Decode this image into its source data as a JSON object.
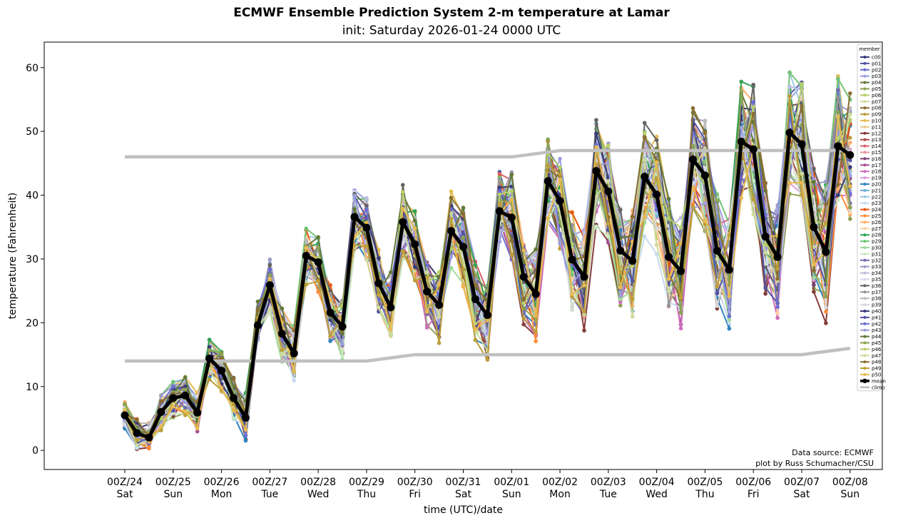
{
  "chart_data": {
    "type": "line",
    "title": "ECMWF Ensemble Prediction System 2-m temperature at Lamar",
    "subtitle": "init: Saturday 2026-01-24 0000 UTC",
    "xlabel": "time (UTC)/date",
    "ylabel": "temperature (Fahrenheit)",
    "ylim": [
      -3,
      64
    ],
    "xlim_hours": [
      -40,
      376
    ],
    "time_step_hours": 6,
    "yticks": [
      0,
      10,
      20,
      30,
      40,
      50,
      60
    ],
    "xticks": [
      {
        "hour": 0,
        "line1": "00Z/24",
        "line2": "Sat"
      },
      {
        "hour": 24,
        "line1": "00Z/25",
        "line2": "Sun"
      },
      {
        "hour": 48,
        "line1": "00Z/26",
        "line2": "Mon"
      },
      {
        "hour": 72,
        "line1": "00Z/27",
        "line2": "Tue"
      },
      {
        "hour": 96,
        "line1": "00Z/28",
        "line2": "Wed"
      },
      {
        "hour": 120,
        "line1": "00Z/29",
        "line2": "Thu"
      },
      {
        "hour": 144,
        "line1": "00Z/30",
        "line2": "Fri"
      },
      {
        "hour": 168,
        "line1": "00Z/31",
        "line2": "Sat"
      },
      {
        "hour": 192,
        "line1": "00Z/01",
        "line2": "Sun"
      },
      {
        "hour": 216,
        "line1": "00Z/02",
        "line2": "Mon"
      },
      {
        "hour": 240,
        "line1": "00Z/03",
        "line2": "Tue"
      },
      {
        "hour": 264,
        "line1": "00Z/04",
        "line2": "Wed"
      },
      {
        "hour": 288,
        "line1": "00Z/05",
        "line2": "Thu"
      },
      {
        "hour": 312,
        "line1": "00Z/06",
        "line2": "Fri"
      },
      {
        "hour": 336,
        "line1": "00Z/07",
        "line2": "Sat"
      },
      {
        "hour": 360,
        "line1": "00Z/08",
        "line2": "Sun"
      }
    ],
    "grid": false,
    "legend": {
      "title": "member",
      "placement": "right",
      "entries": [
        "c00",
        "p01",
        "p02",
        "p03",
        "p04",
        "p05",
        "p06",
        "p07",
        "p08",
        "p09",
        "p10",
        "p11",
        "p12",
        "p13",
        "p14",
        "p15",
        "p16",
        "p17",
        "p18",
        "p19",
        "p20",
        "p21",
        "p22",
        "p23",
        "p24",
        "p25",
        "p26",
        "p27",
        "p28",
        "p29",
        "p30",
        "p31",
        "p32",
        "p33",
        "p34",
        "p35",
        "p36",
        "p37",
        "p38",
        "p39",
        "p40",
        "p41",
        "p42",
        "p43",
        "p44",
        "p45",
        "p46",
        "p47",
        "p48",
        "p49",
        "p50",
        "mean",
        "climo"
      ]
    },
    "member_colors": [
      "#393b79",
      "#5254a3",
      "#6b6ecf",
      "#9c9ede",
      "#637939",
      "#8ca252",
      "#b5cf6b",
      "#cedb9c",
      "#8c6d31",
      "#bd9e39",
      "#e7ba52",
      "#e7cb94",
      "#843c39",
      "#ad494a",
      "#d6616b",
      "#e7969c",
      "#7b4173",
      "#a55194",
      "#ce6dbd",
      "#de9ed6",
      "#3182bd",
      "#6baed6",
      "#9ecae1",
      "#c6dbef",
      "#e6550d",
      "#fd8d3c",
      "#fdae6b",
      "#fdd0a2",
      "#31a354",
      "#74c476",
      "#a1d99b",
      "#c7e9c0",
      "#756bb1",
      "#9e9ac8",
      "#bcbddc",
      "#dadaeb",
      "#636363",
      "#969696",
      "#bdbdbd",
      "#d9d9d9",
      "#393b79",
      "#5254a3",
      "#6b6ecf",
      "#9c9ede",
      "#637939",
      "#8ca252",
      "#b5cf6b",
      "#cedb9c",
      "#8c6d31",
      "#bd9e39",
      "#e7ba52"
    ],
    "mean_color": "#000000",
    "climo_color": "#c0c0c0",
    "series": [
      {
        "name": "mean",
        "values": [
          5.5,
          2.7,
          2.0,
          6.0,
          8.2,
          8.6,
          5.9,
          14.4,
          12.5,
          8.2,
          5.1,
          19.6,
          25.9,
          18.3,
          15.2,
          30.5,
          29.5,
          21.6,
          19.4,
          36.6,
          34.9,
          26.2,
          22.4,
          35.8,
          32.3,
          24.9,
          22.8,
          34.4,
          31.9,
          23.7,
          21.2,
          37.5,
          36.5,
          27.2,
          24.5,
          42.2,
          39.1,
          29.9,
          27.2,
          43.8,
          40.6,
          31.3,
          29.7,
          42.9,
          40.1,
          30.3,
          28.1,
          45.6,
          43.1,
          31.3,
          28.3,
          48.4,
          47.2,
          33.5,
          30.3,
          49.8,
          48.0,
          35.0,
          31.1,
          47.7,
          46.3
        ]
      },
      {
        "name": "climo_max",
        "hours": [
          0,
          192,
          216,
          360
        ],
        "values": [
          46,
          46,
          47,
          47
        ]
      },
      {
        "name": "climo_min",
        "hours": [
          0,
          120,
          144,
          336,
          360
        ],
        "values": [
          14,
          14,
          15,
          15,
          16
        ]
      }
    ],
    "ensemble_spread_note": "51 members (c00, p01-p50) plotted as thin colored lines with markers around the mean",
    "annotations": [
      "Data source: ECMWF",
      "plot by Russ Schumacher/CSU"
    ]
  }
}
